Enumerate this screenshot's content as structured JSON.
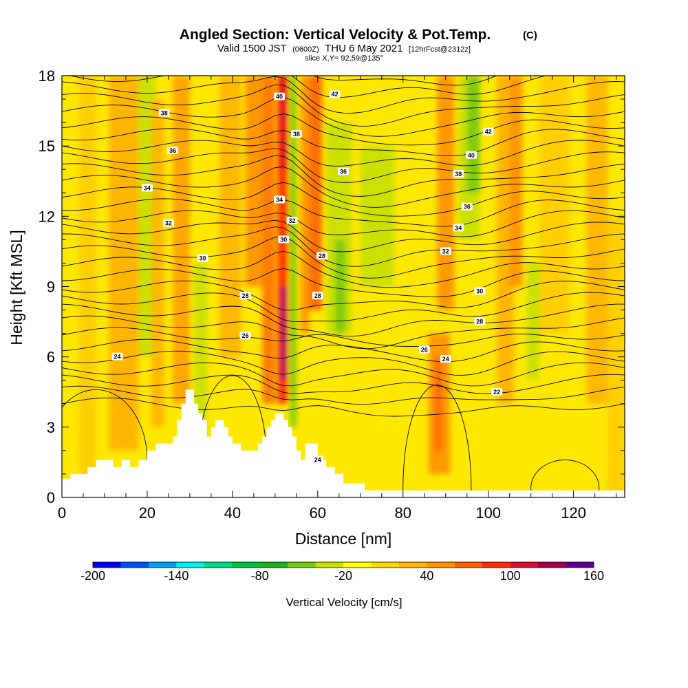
{
  "chart_data": {
    "type": "heatmap",
    "title": "Angled Section: Vertical Velocity & Pot.Temp.",
    "title_units": "(C)",
    "subtitle_parts": {
      "valid": "Valid 1500 JST",
      "utc": "(0600Z)",
      "date": "THU 6 May 2021",
      "fcst": "[12hrFcst@2312z]"
    },
    "slice_label": "slice X,Y= 92,59@135°",
    "xlabel": "Distance [nm]",
    "ylabel": "Height [Kft MSL]",
    "xlim": [
      0,
      132
    ],
    "ylim": [
      0,
      18
    ],
    "x_ticks": [
      0,
      20,
      40,
      60,
      80,
      100,
      120
    ],
    "y_ticks": [
      0,
      3,
      6,
      9,
      12,
      15,
      18
    ],
    "grid": false,
    "fill_variable": "Vertical Velocity [cm/s]",
    "colorbar": {
      "label": "Vertical Velocity [cm/s]",
      "tick_labels": [
        "-200",
        "-140",
        "-80",
        "-20",
        "40",
        "100",
        "160"
      ],
      "colors": [
        "#0000f0",
        "#0050f0",
        "#00a0f0",
        "#00f0f0",
        "#00d880",
        "#00c040",
        "#20b020",
        "#78c810",
        "#c8e000",
        "#ffff00",
        "#ffd800",
        "#ffb400",
        "#ff9000",
        "#ff6000",
        "#ff2800",
        "#d81030",
        "#a00050",
        "#600090"
      ]
    },
    "contour_variable": "Pot.Temp. (C)",
    "contour_labels": [
      {
        "text": "38",
        "x": 24,
        "y": 16.4
      },
      {
        "text": "36",
        "x": 26,
        "y": 14.8
      },
      {
        "text": "34",
        "x": 20,
        "y": 13.2
      },
      {
        "text": "32",
        "x": 25,
        "y": 11.7
      },
      {
        "text": "30",
        "x": 33,
        "y": 10.2
      },
      {
        "text": "28",
        "x": 43,
        "y": 8.6
      },
      {
        "text": "26",
        "x": 43,
        "y": 6.9
      },
      {
        "text": "24",
        "x": 13,
        "y": 6.0
      },
      {
        "text": "40",
        "x": 51,
        "y": 17.1
      },
      {
        "text": "42",
        "x": 64,
        "y": 17.2
      },
      {
        "text": "38",
        "x": 55,
        "y": 15.5
      },
      {
        "text": "36",
        "x": 66,
        "y": 13.9
      },
      {
        "text": "34",
        "x": 51,
        "y": 12.7
      },
      {
        "text": "32",
        "x": 54,
        "y": 11.8
      },
      {
        "text": "30",
        "x": 52,
        "y": 11.0
      },
      {
        "text": "28",
        "x": 61,
        "y": 10.3
      },
      {
        "text": "28",
        "x": 60,
        "y": 8.6
      },
      {
        "text": "42",
        "x": 100,
        "y": 15.6
      },
      {
        "text": "40",
        "x": 96,
        "y": 14.6
      },
      {
        "text": "38",
        "x": 93,
        "y": 13.8
      },
      {
        "text": "36",
        "x": 95,
        "y": 12.4
      },
      {
        "text": "34",
        "x": 93,
        "y": 11.5
      },
      {
        "text": "32",
        "x": 90,
        "y": 10.5
      },
      {
        "text": "30",
        "x": 98,
        "y": 8.8
      },
      {
        "text": "28",
        "x": 98,
        "y": 7.5
      },
      {
        "text": "26",
        "x": 85,
        "y": 6.3
      },
      {
        "text": "24",
        "x": 90,
        "y": 5.9
      },
      {
        "text": "22",
        "x": 102,
        "y": 4.5
      },
      {
        "text": "24",
        "x": 60,
        "y": 1.6
      }
    ],
    "terrain_kft": [
      [
        0,
        0.8
      ],
      [
        2,
        0.8
      ],
      [
        2,
        1.0
      ],
      [
        6,
        1.0
      ],
      [
        6,
        1.3
      ],
      [
        8,
        1.3
      ],
      [
        8,
        1.6
      ],
      [
        12,
        1.6
      ],
      [
        12,
        1.3
      ],
      [
        14,
        1.3
      ],
      [
        14,
        1.6
      ],
      [
        16,
        1.6
      ],
      [
        16,
        1.3
      ],
      [
        18,
        1.3
      ],
      [
        18,
        1.6
      ],
      [
        20,
        1.6
      ],
      [
        20,
        2.0
      ],
      [
        22,
        2.0
      ],
      [
        22,
        2.3
      ],
      [
        26,
        2.3
      ],
      [
        26,
        2.6
      ],
      [
        27,
        2.6
      ],
      [
        27,
        3.3
      ],
      [
        28,
        3.3
      ],
      [
        28,
        4.0
      ],
      [
        29,
        4.0
      ],
      [
        29,
        4.6
      ],
      [
        31,
        4.6
      ],
      [
        31,
        4.0
      ],
      [
        32,
        4.0
      ],
      [
        32,
        3.6
      ],
      [
        33,
        3.6
      ],
      [
        33,
        3.3
      ],
      [
        34,
        3.3
      ],
      [
        34,
        2.6
      ],
      [
        35,
        2.6
      ],
      [
        35,
        3.0
      ],
      [
        36,
        3.0
      ],
      [
        36,
        3.3
      ],
      [
        38,
        3.3
      ],
      [
        38,
        3.0
      ],
      [
        39,
        3.0
      ],
      [
        39,
        2.6
      ],
      [
        40,
        2.6
      ],
      [
        40,
        2.3
      ],
      [
        42,
        2.3
      ],
      [
        42,
        2.0
      ],
      [
        46,
        2.0
      ],
      [
        46,
        2.3
      ],
      [
        47,
        2.3
      ],
      [
        47,
        2.6
      ],
      [
        48,
        2.6
      ],
      [
        48,
        3.0
      ],
      [
        49,
        3.0
      ],
      [
        49,
        3.3
      ],
      [
        50,
        3.3
      ],
      [
        50,
        3.6
      ],
      [
        52,
        3.6
      ],
      [
        52,
        3.3
      ],
      [
        53,
        3.3
      ],
      [
        53,
        3.0
      ],
      [
        54,
        3.0
      ],
      [
        54,
        2.6
      ],
      [
        55,
        2.6
      ],
      [
        55,
        2.0
      ],
      [
        56,
        2.0
      ],
      [
        56,
        1.6
      ],
      [
        57,
        1.6
      ],
      [
        57,
        2.3
      ],
      [
        60,
        2.3
      ],
      [
        60,
        1.6
      ],
      [
        62,
        1.6
      ],
      [
        62,
        1.3
      ],
      [
        64,
        1.3
      ],
      [
        64,
        1.0
      ],
      [
        66,
        1.0
      ],
      [
        66,
        0.6
      ],
      [
        71,
        0.6
      ],
      [
        71,
        0.3
      ],
      [
        132,
        0.3
      ]
    ]
  }
}
